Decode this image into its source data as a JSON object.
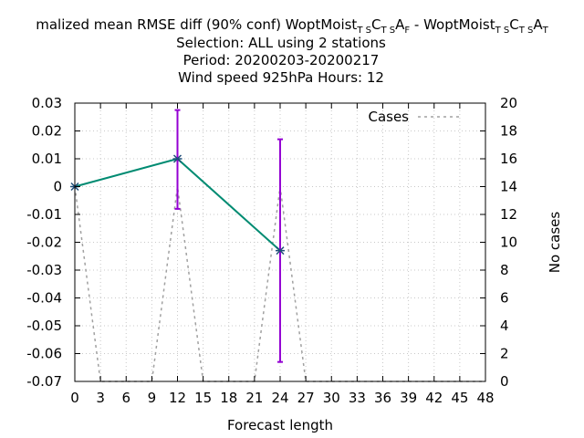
{
  "colors": {
    "series": "#008b72",
    "errorbar": "#9400d3",
    "marker": "#1f4e79",
    "cases": "#a0a0a0",
    "grid": "#c8c8c8"
  },
  "chart_data": {
    "type": "line",
    "title": {
      "line1": {
        "prefix": "malized mean RMSE diff (90% conf) WoptMoist",
        "sub1a": "T S",
        "mid1a": "C",
        "sub1b": "T S",
        "mid1b": "A",
        "sub1c": "F",
        "sep": " - WoptMoist",
        "sub2a": "T S",
        "mid2a": "C",
        "sub2b": "T S",
        "mid2b": "A",
        "sub2c": "T"
      },
      "line2": "Selection: ALL using     2 stations",
      "line3": "Period: 20200203-20200217",
      "line4": "Wind speed 925hPa   Hours:  12"
    },
    "xlabel": "Forecast length",
    "ylabel": "",
    "y2label": "No cases",
    "xlim": [
      0,
      48
    ],
    "ylim": [
      -0.07,
      0.03
    ],
    "y2lim": [
      0,
      20
    ],
    "xticks": [
      "0",
      "3",
      "6",
      "9",
      "12",
      "15",
      "18",
      "21",
      "24",
      "27",
      "30",
      "33",
      "36",
      "39",
      "42",
      "45",
      "48"
    ],
    "yticks": [
      "0.03",
      "0.02",
      "0.01",
      "0",
      "-0.01",
      "-0.02",
      "-0.03",
      "-0.04",
      "-0.05",
      "-0.06",
      "-0.07"
    ],
    "y2ticks": [
      "20",
      "18",
      "16",
      "14",
      "12",
      "10",
      "8",
      "6",
      "4",
      "2",
      "0"
    ],
    "grid": true,
    "legend_position": "top-right",
    "series": [
      {
        "x": [
          0,
          12,
          24
        ],
        "y": [
          0.0,
          0.01,
          -0.023
        ],
        "err_low": [
          0.0,
          -0.008,
          -0.063
        ],
        "err_high": [
          0.0,
          0.0275,
          0.017
        ]
      }
    ],
    "cases": {
      "name": "Cases",
      "x": [
        0,
        3,
        9,
        12,
        15,
        21,
        24,
        27,
        48
      ],
      "y": [
        14,
        0,
        0,
        14,
        0,
        0,
        14,
        0,
        0
      ]
    }
  }
}
